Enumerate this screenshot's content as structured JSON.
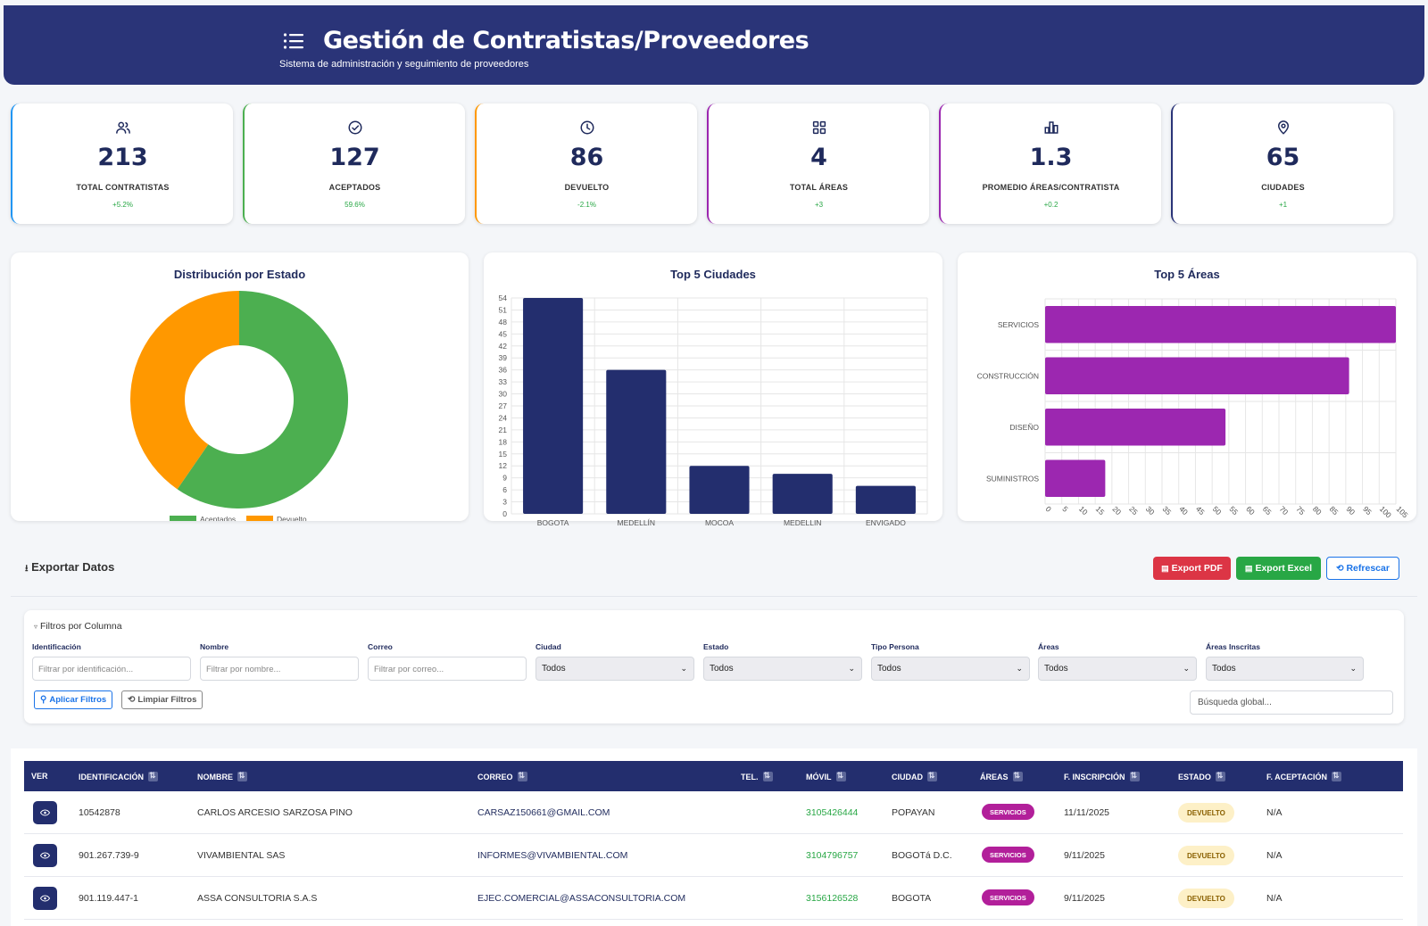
{
  "header": {
    "title": "Gestión de Contratistas/Proveedores",
    "subtitle": "Sistema de administración y seguimiento de proveedores",
    "bg_color": "#2a3478"
  },
  "stats": [
    {
      "icon": "users-icon",
      "value": "213",
      "label": "TOTAL CONTRATISTAS",
      "change": "+5.2%",
      "accent": "#2196f3"
    },
    {
      "icon": "check-circle-icon",
      "value": "127",
      "label": "ACEPTADOS",
      "change": "59.6%",
      "accent": "#4caf50"
    },
    {
      "icon": "clock-icon",
      "value": "86",
      "label": "DEVUELTO",
      "change": "-2.1%",
      "accent": "#ff9800"
    },
    {
      "icon": "grid-icon",
      "value": "4",
      "label": "TOTAL ÁREAS",
      "change": "+3",
      "accent": "#9c27b0"
    },
    {
      "icon": "bar-chart-icon",
      "value": "1.3",
      "label": "PROMEDIO ÁREAS/CONTRATISTA",
      "change": "+0.2",
      "accent": "#9c27b0"
    },
    {
      "icon": "map-pin-icon",
      "value": "65",
      "label": "CIUDADES",
      "change": "+1",
      "accent": "#2a3478"
    }
  ],
  "chart_data": [
    {
      "type": "pie",
      "title": "Distribución por Estado",
      "categories": [
        "Aceptados",
        "Devuelto"
      ],
      "values": [
        127,
        86
      ],
      "colors": [
        "#4caf50",
        "#ff9800"
      ],
      "donut": true,
      "legend": "bottom"
    },
    {
      "type": "bar",
      "title": "Top 5 Ciudades",
      "categories": [
        "BOGOTA",
        "MEDELLÍN",
        "MOCOA",
        "MEDELLIN",
        "ENVIGADO"
      ],
      "values": [
        54,
        36,
        12,
        10,
        7
      ],
      "ylim": [
        0,
        54
      ],
      "yticks": [
        0,
        3,
        6,
        9,
        12,
        15,
        18,
        21,
        24,
        27,
        30,
        33,
        36,
        39,
        42,
        45,
        48,
        51,
        54
      ],
      "color": "#232e6e",
      "grid": true
    },
    {
      "type": "bar",
      "orientation": "horizontal",
      "title": "Top 5 Áreas",
      "categories": [
        "SERVICIOS",
        "CONSTRUCCIÓN",
        "DISEÑO",
        "SUMINISTROS"
      ],
      "values": [
        105,
        91,
        54,
        18
      ],
      "xlim": [
        0,
        105
      ],
      "xticks": [
        0,
        5,
        10,
        15,
        20,
        25,
        30,
        35,
        40,
        45,
        50,
        55,
        60,
        65,
        70,
        75,
        80,
        85,
        90,
        95,
        100,
        105
      ],
      "color": "#9c27b0",
      "grid": true
    }
  ],
  "export": {
    "title": "Exportar Datos",
    "pdf_label": "Export PDF",
    "excel_label": "Export Excel",
    "refresh_label": "Refrescar"
  },
  "filters": {
    "title": "Filtros por Columna",
    "columns": [
      {
        "label": "Identificación",
        "kind": "input",
        "placeholder": "Filtrar por identificación..."
      },
      {
        "label": "Nombre",
        "kind": "input",
        "placeholder": "Filtrar por nombre..."
      },
      {
        "label": "Correo",
        "kind": "input",
        "placeholder": "Filtrar por correo..."
      },
      {
        "label": "Ciudad",
        "kind": "select",
        "value": "Todos"
      },
      {
        "label": "Estado",
        "kind": "select",
        "value": "Todos"
      },
      {
        "label": "Tipo Persona",
        "kind": "select",
        "value": "Todos"
      },
      {
        "label": "Áreas",
        "kind": "select",
        "value": "Todos"
      },
      {
        "label": "Áreas Inscritas",
        "kind": "select",
        "value": "Todos"
      }
    ],
    "apply_label": "Aplicar Filtros",
    "clear_label": "Limpiar Filtros",
    "global_search_placeholder": "Búsqueda global..."
  },
  "table": {
    "headers": [
      "VER",
      "IDENTIFICACIÓN",
      "NOMBRE",
      "CORREO",
      "TEL.",
      "MÓVIL",
      "CIUDAD",
      "ÁREAS",
      "F. INSCRIPCIÓN",
      "ESTADO",
      "F. ACEPTACIÓN"
    ],
    "rows": [
      {
        "id": "10542878",
        "nombre": "CARLOS ARCESIO SARZOSA PINO",
        "correo": "CARSAZ150661@GMAIL.COM",
        "tel": "",
        "movil": "3105426444",
        "ciudad": "POPAYAN",
        "area": "SERVICIOS",
        "f_inscripcion": "11/11/2025",
        "estado": "DEVUELTO",
        "f_aceptacion": "N/A"
      },
      {
        "id": "901.267.739-9",
        "nombre": "VIVAMBIENTAL SAS",
        "correo": "INFORMES@VIVAMBIENTAL.COM",
        "tel": "",
        "movil": "3104796757",
        "ciudad": "BOGOTá D.C.",
        "area": "SERVICIOS",
        "f_inscripcion": "9/11/2025",
        "estado": "DEVUELTO",
        "f_aceptacion": "N/A"
      },
      {
        "id": "901.119.447-1",
        "nombre": "ASSA CONSULTORIA S.A.S",
        "correo": "EJEC.COMERCIAL@ASSACONSULTORIA.COM",
        "tel": "",
        "movil": "3156126528",
        "ciudad": "BOGOTA",
        "area": "SERVICIOS",
        "f_inscripcion": "9/11/2025",
        "estado": "DEVUELTO",
        "f_aceptacion": "N/A"
      }
    ]
  }
}
